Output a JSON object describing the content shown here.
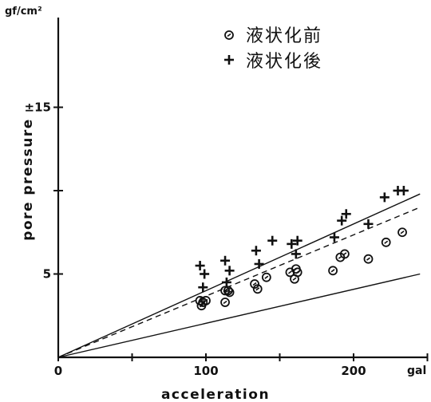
{
  "chart_data": {
    "type": "scatter",
    "xlabel": "acceleration",
    "ylabel": "pore pressure",
    "x_unit": "gal",
    "y_unit": "gf/cm²",
    "xlim": [
      0,
      250
    ],
    "ylim": [
      0,
      20
    ],
    "x_ticks": [
      {
        "value": 0,
        "label": "0"
      },
      {
        "value": 50,
        "label": ""
      },
      {
        "value": 100,
        "label": "100"
      },
      {
        "value": 150,
        "label": ""
      },
      {
        "value": 200,
        "label": "200"
      },
      {
        "value": 250,
        "label": ""
      }
    ],
    "y_ticks": [
      {
        "value": 5,
        "label": "5"
      },
      {
        "value": 10,
        "label": ""
      },
      {
        "value": 15,
        "label": "±15"
      }
    ],
    "series": [
      {
        "name": "液状化前",
        "marker": "circle-dot",
        "points": [
          [
            96,
            3.4
          ],
          [
            97,
            3.1
          ],
          [
            98,
            3.3
          ],
          [
            100,
            3.4
          ],
          [
            113,
            3.3
          ],
          [
            113,
            4.0
          ],
          [
            115,
            4.0
          ],
          [
            116,
            3.9
          ],
          [
            133,
            4.4
          ],
          [
            135,
            4.1
          ],
          [
            141,
            4.8
          ],
          [
            157,
            5.1
          ],
          [
            160,
            4.7
          ],
          [
            161,
            5.3
          ],
          [
            162,
            5.1
          ],
          [
            186,
            5.2
          ],
          [
            191,
            6.0
          ],
          [
            194,
            6.2
          ],
          [
            210,
            5.9
          ],
          [
            222,
            6.9
          ],
          [
            233,
            7.5
          ]
        ]
      },
      {
        "name": "液状化後",
        "marker": "plus",
        "points": [
          [
            96,
            5.5
          ],
          [
            98,
            4.2
          ],
          [
            99,
            5.0
          ],
          [
            113,
            5.8
          ],
          [
            114,
            4.5
          ],
          [
            116,
            5.2
          ],
          [
            134,
            6.4
          ],
          [
            136,
            5.6
          ],
          [
            145,
            7.0
          ],
          [
            158,
            6.8
          ],
          [
            161,
            6.2
          ],
          [
            162,
            7.0
          ],
          [
            187,
            7.2
          ],
          [
            192,
            8.2
          ],
          [
            195,
            8.6
          ],
          [
            210,
            8.0
          ],
          [
            221,
            9.6
          ],
          [
            230,
            10.0
          ],
          [
            234,
            10.0
          ]
        ]
      }
    ],
    "lines": [
      {
        "style": "solid",
        "from": [
          0,
          0
        ],
        "to": [
          245,
          9.8
        ]
      },
      {
        "style": "dashed",
        "from": [
          0,
          0
        ],
        "to": [
          245,
          9.0
        ]
      },
      {
        "style": "solid",
        "from": [
          0,
          0
        ],
        "to": [
          245,
          5.0
        ]
      }
    ],
    "grid": false,
    "legend": "top-right"
  }
}
